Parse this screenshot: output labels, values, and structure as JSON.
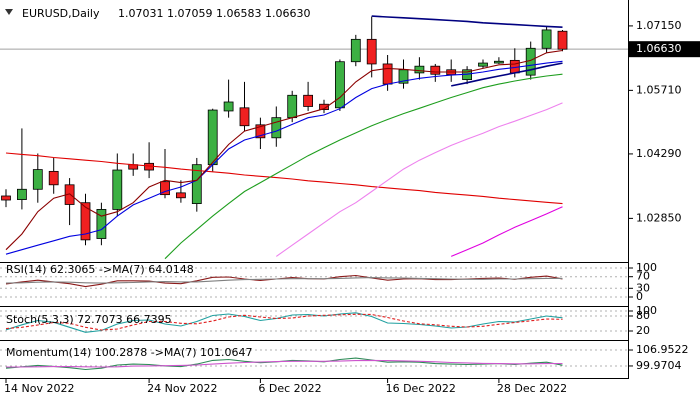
{
  "chart_data": [
    {
      "type": "candlestick",
      "title": "EURUSD,Daily",
      "ohlc_label": "1.07031 1.07059 1.06583 1.06630",
      "categories": [
        "14 Nov 2022",
        null,
        null,
        null,
        null,
        null,
        null,
        null,
        null,
        "24 Nov 2022",
        null,
        null,
        null,
        null,
        null,
        null,
        "6 Dec 2022",
        null,
        null,
        null,
        null,
        null,
        null,
        null,
        "16 Dec 2022",
        null,
        null,
        null,
        null,
        null,
        null,
        "28 Dec 2022",
        null,
        null,
        null,
        null
      ],
      "open": [
        1.0335,
        1.0327,
        1.035,
        1.039,
        1.036,
        1.032,
        1.024,
        1.0305,
        1.0405,
        1.0408,
        1.0367,
        1.0342,
        1.0318,
        1.0405,
        1.0525,
        1.0532,
        1.0494,
        1.0465,
        1.051,
        1.056,
        1.054,
        1.0532,
        1.0635,
        1.0685,
        1.063,
        1.0587,
        1.061,
        1.0625,
        1.0617,
        1.0595,
        1.0625,
        1.0632,
        1.0638,
        1.0605,
        1.0665,
        1.07031
      ],
      "high": [
        1.035,
        1.0486,
        1.043,
        1.042,
        1.0375,
        1.034,
        1.032,
        1.043,
        1.043,
        1.0455,
        1.044,
        1.037,
        1.042,
        1.053,
        1.0595,
        1.059,
        1.051,
        1.0535,
        1.057,
        1.059,
        1.055,
        1.064,
        1.0695,
        1.0736,
        1.065,
        1.064,
        1.0645,
        1.063,
        1.064,
        1.0625,
        1.064,
        1.0645,
        1.0665,
        1.068,
        1.0713,
        1.07059
      ],
      "low": [
        1.031,
        1.0305,
        1.032,
        1.034,
        1.027,
        1.0225,
        1.0225,
        1.029,
        1.038,
        1.0375,
        1.033,
        1.032,
        1.03,
        1.039,
        1.051,
        1.048,
        1.044,
        1.0445,
        1.05,
        1.0525,
        1.052,
        1.0525,
        1.0625,
        1.06,
        1.057,
        1.0575,
        1.0595,
        1.059,
        1.059,
        1.0585,
        1.062,
        1.063,
        1.06,
        1.0595,
        1.0655,
        1.06583
      ],
      "close": [
        1.0326,
        1.035,
        1.0394,
        1.036,
        1.0316,
        1.0237,
        1.0305,
        1.0393,
        1.0395,
        1.0393,
        1.0338,
        1.0331,
        1.0405,
        1.0527,
        1.0545,
        1.0492,
        1.0465,
        1.051,
        1.056,
        1.0535,
        1.0528,
        1.0635,
        1.0685,
        1.063,
        1.0585,
        1.0617,
        1.0625,
        1.0607,
        1.0606,
        1.0617,
        1.0632,
        1.0636,
        1.061,
        1.0665,
        1.0706,
        1.0663
      ],
      "up_color": "#3cb043",
      "down_color": "#f02020",
      "series": [
        {
          "color": "#e00000",
          "values": [
            1.0431,
            1.0428,
            1.0425,
            1.0421,
            1.0418,
            1.0415,
            1.0412,
            1.0408,
            1.0405,
            1.0402,
            1.0399,
            1.0395,
            1.0392,
            1.0389,
            1.0386,
            1.0382,
            1.0379,
            1.0376,
            1.0373,
            1.0369,
            1.0366,
            1.0363,
            1.036,
            1.0356,
            1.0353,
            1.035,
            1.0347,
            1.0343,
            1.034,
            1.0337,
            1.0334,
            1.033,
            1.0327,
            1.0324,
            1.0321,
            1.0318
          ]
        },
        {
          "color": "#1e9e1e",
          "values": [
            null,
            null,
            null,
            null,
            null,
            null,
            null,
            null,
            null,
            null,
            1.0195,
            1.023,
            1.026,
            1.029,
            1.0318,
            1.0345,
            1.0365,
            1.0385,
            1.0405,
            1.0425,
            1.0443,
            1.046,
            1.0476,
            1.0492,
            1.0506,
            1.0519,
            1.0531,
            1.0543,
            1.0555,
            1.0566,
            1.0577,
            1.0585,
            1.0592,
            1.0598,
            1.0603,
            1.0607
          ]
        },
        {
          "color": "#ee82ee",
          "values": [
            null,
            null,
            null,
            null,
            null,
            null,
            null,
            null,
            null,
            null,
            null,
            null,
            null,
            null,
            null,
            null,
            null,
            1.02,
            1.0225,
            1.025,
            1.0275,
            1.03,
            1.032,
            1.0345,
            1.037,
            1.0395,
            1.0415,
            1.0432,
            1.0448,
            1.0462,
            1.0475,
            1.049,
            1.0502,
            1.0515,
            1.0528,
            1.0543
          ]
        },
        {
          "color": "#e000e0",
          "values": [
            null,
            null,
            null,
            null,
            null,
            null,
            null,
            null,
            null,
            null,
            null,
            null,
            null,
            null,
            null,
            null,
            null,
            null,
            null,
            null,
            null,
            null,
            null,
            null,
            null,
            null,
            null,
            null,
            1.02,
            1.0215,
            1.023,
            1.0248,
            1.0265,
            1.028,
            1.0295,
            1.0311
          ]
        },
        {
          "color": "#0000e0",
          "values": [
            1.0205,
            1.0215,
            1.0225,
            1.0235,
            1.0245,
            1.025,
            1.026,
            1.029,
            1.0315,
            1.033,
            1.0345,
            1.0355,
            1.037,
            1.0405,
            1.044,
            1.046,
            1.047,
            1.048,
            1.0495,
            1.051,
            1.0516,
            1.053,
            1.0555,
            1.0575,
            1.0585,
            1.0592,
            1.0598,
            1.0602,
            1.0605,
            1.0607,
            1.0612,
            1.0618,
            1.0622,
            1.0627,
            1.0632,
            1.0636
          ]
        },
        {
          "color": "#8b0000",
          "values": [
            1.0215,
            1.025,
            1.03,
            1.033,
            1.034,
            1.031,
            1.029,
            1.03,
            1.032,
            1.0355,
            1.037,
            1.0365,
            1.037,
            1.041,
            1.045,
            1.048,
            1.049,
            1.05,
            1.051,
            1.052,
            1.053,
            1.0555,
            1.059,
            1.0615,
            1.062,
            1.0618,
            1.0615,
            1.0612,
            1.0612,
            1.0612,
            1.062,
            1.0628,
            1.063,
            1.0638,
            1.0655,
            1.066
          ]
        },
        {
          "color": "#000080",
          "values": [
            null,
            null,
            null,
            null,
            null,
            null,
            null,
            null,
            null,
            null,
            null,
            null,
            null,
            null,
            null,
            null,
            null,
            null,
            null,
            null,
            null,
            null,
            null,
            1.0737,
            1.0735,
            1.0733,
            1.0731,
            1.0729,
            1.0727,
            1.0725,
            1.0722,
            1.072,
            1.0718,
            1.0716,
            1.0714,
            1.0712
          ]
        },
        {
          "color": "#000080",
          "values": [
            null,
            null,
            null,
            null,
            null,
            null,
            null,
            null,
            null,
            null,
            null,
            null,
            null,
            null,
            null,
            null,
            null,
            null,
            null,
            null,
            null,
            null,
            null,
            null,
            null,
            null,
            null,
            null,
            1.0581,
            1.0588,
            1.0596,
            1.0603,
            1.061,
            1.0617,
            1.0625,
            1.0632
          ]
        }
      ],
      "ylim": [
        1.0192,
        1.0755
      ],
      "yticks": [
        {
          "value": 1.0715,
          "label": "1.07150"
        },
        {
          "value": 1.0571,
          "label": "1.05710"
        },
        {
          "value": 1.0429,
          "label": "1.04290"
        },
        {
          "value": 1.0285,
          "label": "1.02850"
        }
      ],
      "last_price": {
        "value": 1.0663,
        "label": "1.06630"
      }
    },
    {
      "type": "line",
      "title": "RSI(14) 62.3065  ->MA(7) 64.0148",
      "ylim": [
        0,
        100
      ],
      "yticks": [
        100,
        70,
        30,
        0
      ],
      "grid": true,
      "series": [
        {
          "color": "#8b1a1a",
          "values": [
            45,
            52,
            58,
            52,
            46,
            36,
            44,
            56,
            56,
            55,
            48,
            46,
            56,
            68,
            69,
            62,
            57,
            62,
            67,
            63,
            62,
            70,
            74,
            66,
            58,
            62,
            63,
            60,
            60,
            62,
            64,
            65,
            61,
            68,
            72,
            62.3065
          ]
        },
        {
          "color": "#808080",
          "values": [
            48,
            49,
            51,
            52,
            51,
            49,
            48,
            49,
            50,
            52,
            53,
            52,
            52,
            55,
            58,
            60,
            61,
            62,
            63,
            63,
            63,
            64,
            66,
            67,
            66,
            65,
            64,
            63,
            62,
            61,
            61,
            62,
            62,
            63,
            64,
            64.0148
          ]
        }
      ]
    },
    {
      "type": "line",
      "title": "Stoch(5,3,3) 72.7073 66.7395",
      "ylim": [
        0,
        100
      ],
      "yticks": [
        100,
        80,
        20
      ],
      "grid": true,
      "series": [
        {
          "color": "#20a0a0",
          "values": [
            25,
            45,
            62,
            55,
            35,
            15,
            22,
            48,
            62,
            64,
            48,
            40,
            58,
            82,
            88,
            78,
            62,
            70,
            84,
            86,
            80,
            88,
            93,
            78,
            52,
            50,
            46,
            40,
            32,
            36,
            48,
            58,
            56,
            68,
            80,
            72.7073
          ]
        },
        {
          "color": "#e02020",
          "dash": true,
          "values": [
            30,
            35,
            44,
            54,
            51,
            35,
            24,
            28,
            44,
            58,
            58,
            51,
            49,
            60,
            76,
            83,
            76,
            70,
            72,
            80,
            83,
            85,
            87,
            86,
            74,
            60,
            49,
            45,
            39,
            36,
            39,
            47,
            54,
            61,
            68,
            66.7395
          ]
        }
      ]
    },
    {
      "type": "line",
      "title": "Momentum(14) 100.2878  ->MA(7) 101.0647",
      "ylim": [
        94.7,
        110.9
      ],
      "yticks": [
        106.9522,
        99.9704
      ],
      "grid": true,
      "series": [
        {
          "color": "#2e8b57",
          "values": [
            99.0,
            99.6,
            100.2,
            99.8,
            99.2,
            98.4,
            99.0,
            100.4,
            100.8,
            100.6,
            100.0,
            99.7,
            100.8,
            102.4,
            102.8,
            102.0,
            101.4,
            101.8,
            102.4,
            102.2,
            101.8,
            102.8,
            103.4,
            102.6,
            101.6,
            101.8,
            101.6,
            101.0,
            100.8,
            100.6,
            100.8,
            101.0,
            100.6,
            101.2,
            101.6,
            100.2878
          ]
        },
        {
          "color": "#cc55cc",
          "values": [
            99.5,
            99.5,
            99.6,
            99.7,
            99.7,
            99.6,
            99.5,
            99.6,
            99.9,
            100.0,
            100.1,
            100.2,
            100.4,
            100.8,
            101.2,
            101.5,
            101.7,
            101.9,
            102.0,
            102.0,
            102.0,
            102.1,
            102.3,
            102.4,
            102.3,
            102.2,
            102.0,
            101.8,
            101.5,
            101.3,
            101.1,
            101.0,
            100.9,
            100.9,
            101.0,
            101.0647
          ]
        }
      ]
    }
  ]
}
